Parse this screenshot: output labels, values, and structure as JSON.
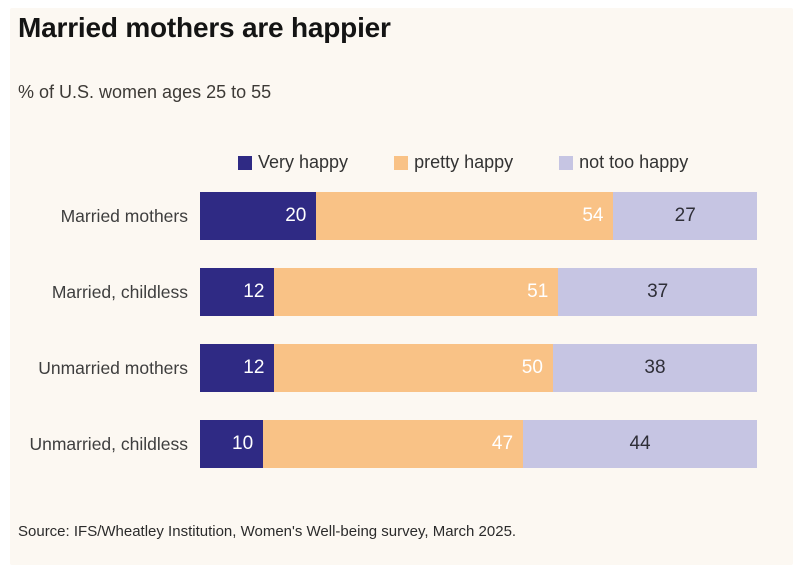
{
  "colors": {
    "background_panel": "#fcf8f2",
    "outer_frame": "#ffffff",
    "title_text": "#141414",
    "subtitle_text": "#3d3a36",
    "category_label_text": "#3e3e3e",
    "source_text": "#2b2b2b"
  },
  "chart_data": {
    "type": "bar",
    "orientation": "horizontal-stacked",
    "title": "Married mothers are happier",
    "subtitle": "% of U.S. women ages 25 to 55",
    "legend_position": "top",
    "grid": false,
    "x_range_percent": [
      0,
      100
    ],
    "categories": [
      "Married mothers",
      "Married, childless",
      "Unmarried mothers",
      "Unmarried, childless"
    ],
    "series": [
      {
        "name": "Very happy",
        "color": "#2f2a84",
        "value_label_color": "#ffffff",
        "value_align": "right",
        "values": [
          20,
          12,
          12,
          10
        ]
      },
      {
        "name": "pretty happy",
        "color": "#f9c286",
        "value_label_color": "#ffffff",
        "value_align": "right",
        "values": [
          54,
          51,
          50,
          47
        ]
      },
      {
        "name": "not too happy",
        "color": "#c6c5e3",
        "value_label_color": "#2f2f38",
        "value_align": "center",
        "values": [
          27,
          37,
          38,
          44
        ]
      }
    ],
    "source": "Source: IFS/Wheatley Institution, Women's Well-being survey, March 2025."
  }
}
